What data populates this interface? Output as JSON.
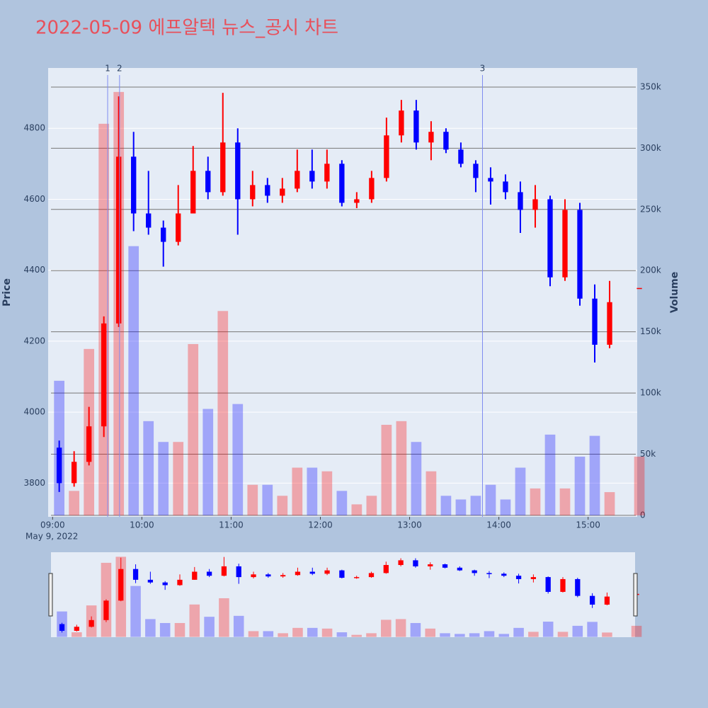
{
  "chart_data": {
    "type": "candlestick",
    "title": "2022-05-09 에프알텍 뉴스_공시 차트",
    "ylabel": "Price",
    "y2label": "Volume",
    "date_label": "May 9, 2022",
    "increasing_color": "#ff0000",
    "decreasing_color": "#0000ff",
    "x": [
      "2022-05-09 09:00",
      "2022-05-09 09:10",
      "2022-05-09 09:20",
      "2022-05-09 09:30",
      "2022-05-09 09:40",
      "2022-05-09 09:50",
      "2022-05-09 10:00",
      "2022-05-09 10:10",
      "2022-05-09 10:20",
      "2022-05-09 10:30",
      "2022-05-09 10:40",
      "2022-05-09 10:50",
      "2022-05-09 11:00",
      "2022-05-09 11:10",
      "2022-05-09 11:20",
      "2022-05-09 11:30",
      "2022-05-09 11:40",
      "2022-05-09 11:50",
      "2022-05-09 12:00",
      "2022-05-09 12:10",
      "2022-05-09 12:20",
      "2022-05-09 12:30",
      "2022-05-09 12:40",
      "2022-05-09 12:50",
      "2022-05-09 13:00",
      "2022-05-09 13:10",
      "2022-05-09 13:20",
      "2022-05-09 13:30",
      "2022-05-09 13:40",
      "2022-05-09 13:50",
      "2022-05-09 14:00",
      "2022-05-09 14:10",
      "2022-05-09 14:20",
      "2022-05-09 14:30",
      "2022-05-09 14:40",
      "2022-05-09 14:50",
      "2022-05-09 15:00",
      "2022-05-09 15:10",
      "2022-05-09 15:30"
    ],
    "open": [
      3900,
      3800,
      3860,
      3960,
      4250,
      4720,
      4560,
      4520,
      4480,
      4560,
      4680,
      4620,
      4760,
      4600,
      4640,
      4610,
      4630,
      4680,
      4650,
      4700,
      4590,
      4600,
      4660,
      4780,
      4850,
      4760,
      4790,
      4740,
      4700,
      4660,
      4650,
      4620,
      4570,
      4600,
      4380,
      4570,
      4320,
      4190,
      4350
    ],
    "high": [
      3920,
      3890,
      4015,
      4270,
      4890,
      4790,
      4680,
      4540,
      4640,
      4750,
      4720,
      4900,
      4800,
      4680,
      4660,
      4660,
      4740,
      4740,
      4740,
      4710,
      4620,
      4680,
      4830,
      4880,
      4880,
      4820,
      4800,
      4760,
      4710,
      4690,
      4670,
      4650,
      4640,
      4610,
      4600,
      4590,
      4360,
      4370,
      4350
    ],
    "low": [
      3775,
      3790,
      3850,
      3930,
      4240,
      4510,
      4500,
      4410,
      4470,
      4560,
      4600,
      4610,
      4500,
      4580,
      4590,
      4590,
      4620,
      4630,
      4630,
      4580,
      4575,
      4590,
      4650,
      4760,
      4740,
      4710,
      4730,
      4690,
      4620,
      4585,
      4600,
      4505,
      4520,
      4355,
      4370,
      4300,
      4140,
      4180,
      4350
    ],
    "close": [
      3800,
      3860,
      3960,
      4250,
      4720,
      4560,
      4520,
      4480,
      4560,
      4680,
      4620,
      4760,
      4600,
      4640,
      4610,
      4630,
      4680,
      4650,
      4700,
      4590,
      4600,
      4660,
      4780,
      4850,
      4760,
      4790,
      4740,
      4700,
      4660,
      4650,
      4620,
      4570,
      4600,
      4380,
      4570,
      4320,
      4190,
      4310,
      4350
    ],
    "volume": [
      110000,
      20000,
      136000,
      320000,
      346000,
      220000,
      77000,
      60000,
      60000,
      140000,
      87000,
      167000,
      91000,
      25000,
      25000,
      16000,
      39000,
      39000,
      36000,
      20000,
      9000,
      16000,
      74000,
      77000,
      60000,
      36000,
      16000,
      13000,
      16000,
      25000,
      13000,
      39000,
      22000,
      66000,
      22000,
      48000,
      65000,
      19000,
      48000
    ],
    "xlim": [
      "2022-05-09 08:57",
      "2022-05-09 15:33"
    ],
    "xticks": [
      {
        "value": "2022-05-09 09:00",
        "label": "09:00"
      },
      {
        "value": "2022-05-09 10:00",
        "label": "10:00"
      },
      {
        "value": "2022-05-09 11:00",
        "label": "11:00"
      },
      {
        "value": "2022-05-09 12:00",
        "label": "12:00"
      },
      {
        "value": "2022-05-09 13:00",
        "label": "13:00"
      },
      {
        "value": "2022-05-09 14:00",
        "label": "14:00"
      },
      {
        "value": "2022-05-09 15:00",
        "label": "15:00"
      }
    ],
    "ylim": [
      3705,
      4970
    ],
    "yticks": [
      3800,
      4000,
      4200,
      4400,
      4600,
      4800
    ],
    "y2lim": [
      -1200,
      365600
    ],
    "y2ticks": [
      0,
      {
        "value": 50000,
        "label": "50k"
      },
      {
        "value": 100000,
        "label": "100k"
      },
      {
        "value": 150000,
        "label": "150k"
      },
      {
        "value": 200000,
        "label": "200k"
      },
      {
        "value": 250000,
        "label": "250k"
      },
      {
        "value": 300000,
        "label": "300k"
      },
      {
        "value": 350000,
        "label": "350k"
      }
    ],
    "annotations": [
      {
        "x": "2022-05-09 09:37",
        "text": "1"
      },
      {
        "x": "2022-05-09 09:45",
        "text": "2"
      },
      {
        "x": "2022-05-09 13:49",
        "text": "3"
      }
    ],
    "rangeslider": true
  }
}
